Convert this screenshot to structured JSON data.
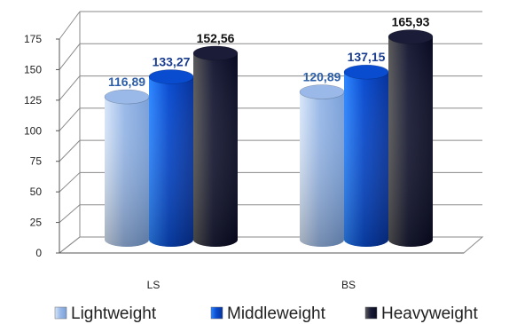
{
  "chart_data": {
    "type": "bar",
    "categories": [
      "LS",
      "BS"
    ],
    "series": [
      {
        "name": "Lightweight",
        "values": [
          116.89,
          120.89
        ],
        "labels": [
          "116,89",
          "120,89"
        ],
        "color": "#a9c6f0",
        "label_color": "#2d5fa8"
      },
      {
        "name": "Middleweight",
        "values": [
          133.27,
          137.15
        ],
        "labels": [
          "133,27",
          "137,15"
        ],
        "color": "#0c55d8",
        "label_color": "#1a3c8f"
      },
      {
        "name": "Heavyweight",
        "values": [
          152.56,
          165.93
        ],
        "labels": [
          "152,56",
          "165,93"
        ],
        "color": "#1a1e40",
        "label_color": "#111111"
      }
    ],
    "ylim": [
      0,
      175
    ],
    "yticks": [
      "0",
      "25",
      "50",
      "75",
      "100",
      "125",
      "150",
      "175"
    ],
    "grid": true,
    "legend_position": "bottom",
    "style": "3d-cylinder"
  }
}
